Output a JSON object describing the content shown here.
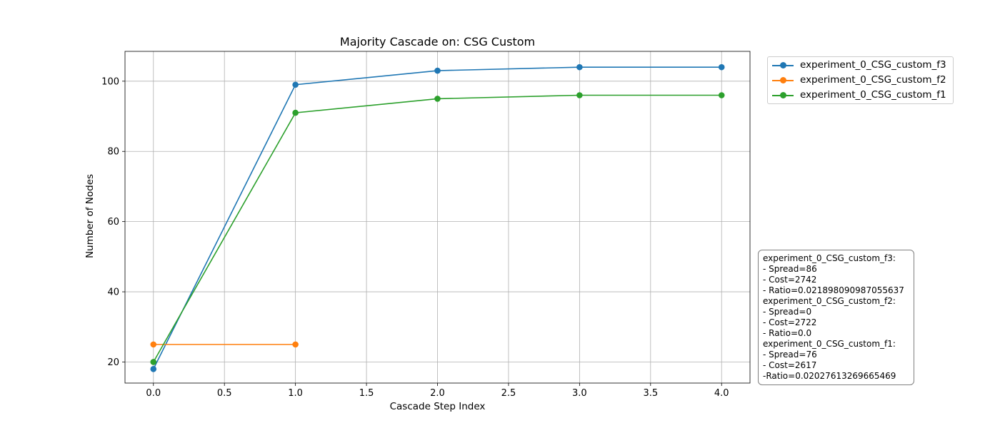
{
  "chart_data": {
    "type": "line",
    "title": "Majority Cascade on: CSG Custom",
    "xlabel": "Cascade Step Index",
    "ylabel": "Number of Nodes",
    "xlim": [
      -0.2,
      4.2
    ],
    "ylim": [
      14,
      108.5
    ],
    "xticks": [
      "0.0",
      "0.5",
      "1.0",
      "1.5",
      "2.0",
      "2.5",
      "3.0",
      "3.5",
      "4.0"
    ],
    "yticks": [
      "20",
      "40",
      "60",
      "80",
      "100"
    ],
    "grid": true,
    "legend_position": "outside-top-right",
    "series": [
      {
        "name": "experiment_0_CSG_custom_f3",
        "color": "#1f77b4",
        "x": [
          0,
          1,
          2,
          3,
          4
        ],
        "y": [
          18,
          99,
          103,
          104,
          104
        ]
      },
      {
        "name": "experiment_0_CSG_custom_f2",
        "color": "#ff7f0e",
        "x": [
          0,
          1
        ],
        "y": [
          25,
          25
        ]
      },
      {
        "name": "experiment_0_CSG_custom_f1",
        "color": "#2ca02c",
        "x": [
          0,
          1,
          2,
          3,
          4
        ],
        "y": [
          20,
          91,
          95,
          96,
          96
        ]
      }
    ],
    "annotations": [
      "experiment_0_CSG_custom_f3:",
      "- Spread=86",
      "- Cost=2742",
      "- Ratio=0.021898090987055637",
      "experiment_0_CSG_custom_f2:",
      "- Spread=0",
      "- Cost=2722",
      "- Ratio=0.0",
      "experiment_0_CSG_custom_f1:",
      "- Spread=76",
      "- Cost=2617",
      "- Ratio=0.020276132696654 69"
    ]
  }
}
